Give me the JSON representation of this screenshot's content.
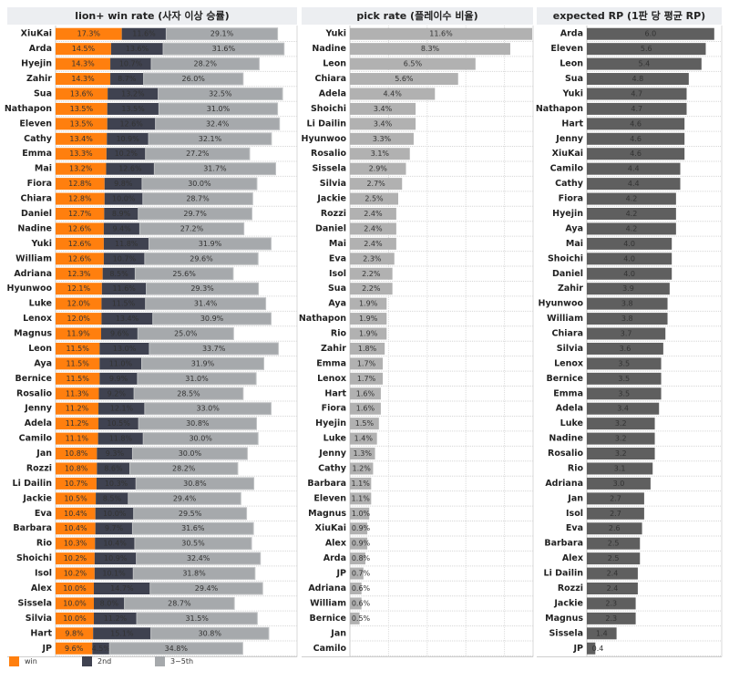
{
  "colors": {
    "win": "#ff7f0e",
    "second": "#3f4250",
    "third_fifth": "#a6a9ac",
    "pick": "#b1b1b1",
    "rp": "#5f5f5f",
    "header_bg": "#eceef1"
  },
  "chart_data": [
    {
      "type": "bar",
      "orientation": "horizontal",
      "stacked": true,
      "title": "lion+ win rate (사자 이상 승률)",
      "categories": [
        "XiuKai",
        "Arda",
        "Hyejin",
        "Zahir",
        "Sua",
        "Nathapon",
        "Eleven",
        "Cathy",
        "Emma",
        "Mai",
        "Fiora",
        "Chiara",
        "Daniel",
        "Nadine",
        "Yuki",
        "William",
        "Adriana",
        "Hyunwoo",
        "Luke",
        "Lenox",
        "Magnus",
        "Leon",
        "Aya",
        "Bernice",
        "Rosalio",
        "Jenny",
        "Adela",
        "Camilo",
        "Jan",
        "Rozzi",
        "Li Dailin",
        "Jackie",
        "Eva",
        "Barbara",
        "Rio",
        "Shoichi",
        "Isol",
        "Alex",
        "Sissela",
        "Silvia",
        "Hart",
        "JP"
      ],
      "series": [
        {
          "name": "win",
          "values": [
            17.3,
            14.5,
            14.3,
            14.3,
            13.6,
            13.5,
            13.5,
            13.4,
            13.3,
            13.2,
            12.8,
            12.8,
            12.7,
            12.6,
            12.6,
            12.6,
            12.3,
            12.1,
            12.0,
            12.0,
            11.9,
            11.5,
            11.5,
            11.5,
            11.3,
            11.2,
            11.2,
            11.1,
            10.8,
            10.8,
            10.7,
            10.5,
            10.4,
            10.4,
            10.3,
            10.2,
            10.2,
            10.0,
            10.0,
            10.0,
            9.8,
            9.6
          ]
        },
        {
          "name": "2nd",
          "values": [
            11.6,
            13.6,
            10.7,
            8.7,
            13.2,
            13.5,
            12.6,
            10.9,
            10.2,
            12.6,
            9.8,
            10.0,
            8.9,
            9.4,
            11.8,
            10.7,
            8.5,
            11.6,
            11.5,
            13.4,
            9.6,
            13.0,
            11.0,
            9.9,
            9.2,
            12.1,
            10.5,
            11.8,
            9.3,
            8.6,
            10.3,
            8.5,
            10.0,
            9.7,
            10.4,
            10.9,
            10.1,
            14.7,
            8.0,
            11.2,
            15.1,
            4.5
          ]
        },
        {
          "name": "3~5th",
          "values": [
            29.1,
            31.6,
            28.2,
            26.0,
            32.5,
            31.0,
            32.4,
            32.1,
            27.2,
            31.7,
            30.0,
            28.7,
            29.7,
            27.2,
            31.9,
            29.6,
            25.6,
            29.3,
            31.4,
            30.9,
            25.0,
            33.7,
            31.9,
            31.0,
            28.5,
            33.0,
            30.8,
            30.0,
            30.0,
            28.2,
            30.8,
            29.4,
            29.5,
            31.6,
            30.5,
            32.4,
            31.8,
            29.4,
            28.7,
            31.5,
            30.8,
            34.8
          ]
        }
      ],
      "value_format": "%",
      "legend": "bottom-left"
    },
    {
      "type": "bar",
      "orientation": "horizontal",
      "title": "pick rate (플레이수 비율)",
      "categories": [
        "Yuki",
        "Nadine",
        "Leon",
        "Chiara",
        "Adela",
        "Shoichi",
        "Li Dailin",
        "Hyunwoo",
        "Rosalio",
        "Sissela",
        "Silvia",
        "Jackie",
        "Rozzi",
        "Daniel",
        "Mai",
        "Eva",
        "Isol",
        "Sua",
        "Aya",
        "Nathapon",
        "Rio",
        "Zahir",
        "Emma",
        "Lenox",
        "Hart",
        "Fiora",
        "Hyejin",
        "Luke",
        "Jenny",
        "Cathy",
        "Barbara",
        "Eleven",
        "Magnus",
        "XiuKai",
        "Alex",
        "Arda",
        "JP",
        "Adriana",
        "William",
        "Bernice",
        "Jan",
        "Camilo"
      ],
      "values": [
        11.6,
        8.3,
        6.5,
        5.6,
        4.4,
        3.4,
        3.4,
        3.3,
        3.1,
        2.9,
        2.7,
        2.5,
        2.4,
        2.4,
        2.4,
        2.3,
        2.2,
        2.2,
        1.9,
        1.9,
        1.9,
        1.8,
        1.7,
        1.7,
        1.6,
        1.6,
        1.5,
        1.4,
        1.3,
        1.2,
        1.1,
        1.1,
        1.0,
        0.9,
        0.9,
        0.8,
        0.7,
        0.6,
        0.6,
        0.5,
        null,
        null
      ],
      "value_format": "%",
      "grid": true
    },
    {
      "type": "bar",
      "orientation": "horizontal",
      "title": "expected RP (1판 당 평균 RP)",
      "categories": [
        "Arda",
        "Eleven",
        "Leon",
        "Sua",
        "Yuki",
        "Nathapon",
        "Hart",
        "Jenny",
        "XiuKai",
        "Camilo",
        "Cathy",
        "Fiora",
        "Hyejin",
        "Aya",
        "Mai",
        "Shoichi",
        "Daniel",
        "Zahir",
        "Hyunwoo",
        "William",
        "Chiara",
        "Silvia",
        "Lenox",
        "Bernice",
        "Emma",
        "Adela",
        "Luke",
        "Nadine",
        "Rosalio",
        "Rio",
        "Adriana",
        "Jan",
        "Isol",
        "Eva",
        "Barbara",
        "Alex",
        "Li Dailin",
        "Rozzi",
        "Jackie",
        "Magnus",
        "Sissela",
        "JP"
      ],
      "values": [
        6.0,
        5.6,
        5.4,
        4.8,
        4.7,
        4.7,
        4.6,
        4.6,
        4.6,
        4.4,
        4.4,
        4.2,
        4.2,
        4.2,
        4.0,
        4.0,
        4.0,
        3.9,
        3.8,
        3.8,
        3.7,
        3.6,
        3.5,
        3.5,
        3.5,
        3.4,
        3.2,
        3.2,
        3.2,
        3.1,
        3.0,
        2.7,
        2.7,
        2.6,
        2.5,
        2.5,
        2.4,
        2.4,
        2.3,
        2.3,
        1.4,
        0.4
      ],
      "value_format": "0.0"
    }
  ]
}
